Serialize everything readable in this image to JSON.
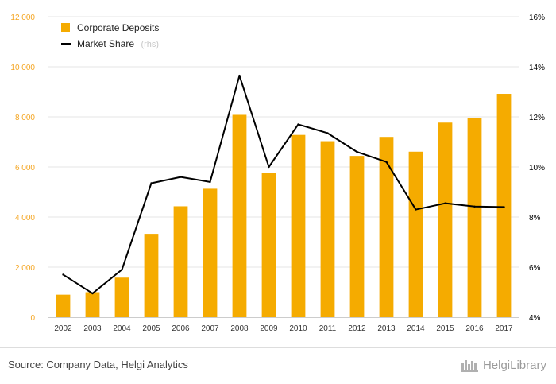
{
  "chart_data": {
    "type": "bar+line",
    "categories": [
      "2002",
      "2003",
      "2004",
      "2005",
      "2006",
      "2007",
      "2008",
      "2009",
      "2010",
      "2011",
      "2012",
      "2013",
      "2014",
      "2015",
      "2016",
      "2017"
    ],
    "series": [
      {
        "name": "Corporate Deposits",
        "type": "bar",
        "axis": "left",
        "values": [
          900,
          1000,
          1580,
          3330,
          4430,
          5130,
          8080,
          5770,
          7280,
          7030,
          6440,
          7200,
          6610,
          7770,
          7960,
          8920
        ]
      },
      {
        "name": "Market Share",
        "type": "line",
        "axis": "right",
        "unit": "%",
        "values": [
          5.7,
          4.95,
          5.9,
          9.35,
          9.6,
          9.4,
          13.65,
          10.0,
          11.7,
          11.35,
          10.6,
          10.2,
          8.3,
          8.55,
          8.42,
          8.4
        ]
      }
    ],
    "y_left": {
      "ylim": [
        0,
        12000
      ],
      "ticks": [
        0,
        2000,
        4000,
        6000,
        8000,
        10000,
        12000
      ],
      "tick_labels": [
        "0",
        "2 000",
        "4 000",
        "6 000",
        "8 000",
        "10 000",
        "12 000"
      ]
    },
    "y_right": {
      "ylim": [
        4,
        16
      ],
      "ticks": [
        4,
        6,
        8,
        10,
        12,
        14,
        16
      ],
      "tick_labels": [
        "4%",
        "6%",
        "8%",
        "10%",
        "12%",
        "14%",
        "16%"
      ]
    },
    "legend": {
      "position": "top-left",
      "rhs_note": "(rhs)"
    },
    "colors": {
      "bar": "#f5ab00",
      "line": "#000000",
      "left_axis_text": "#f5a623",
      "grid": "#e6e6e6"
    }
  },
  "footer": {
    "source": "Source: Company Data, Helgi Analytics",
    "brand": "HelgiLibrary"
  }
}
